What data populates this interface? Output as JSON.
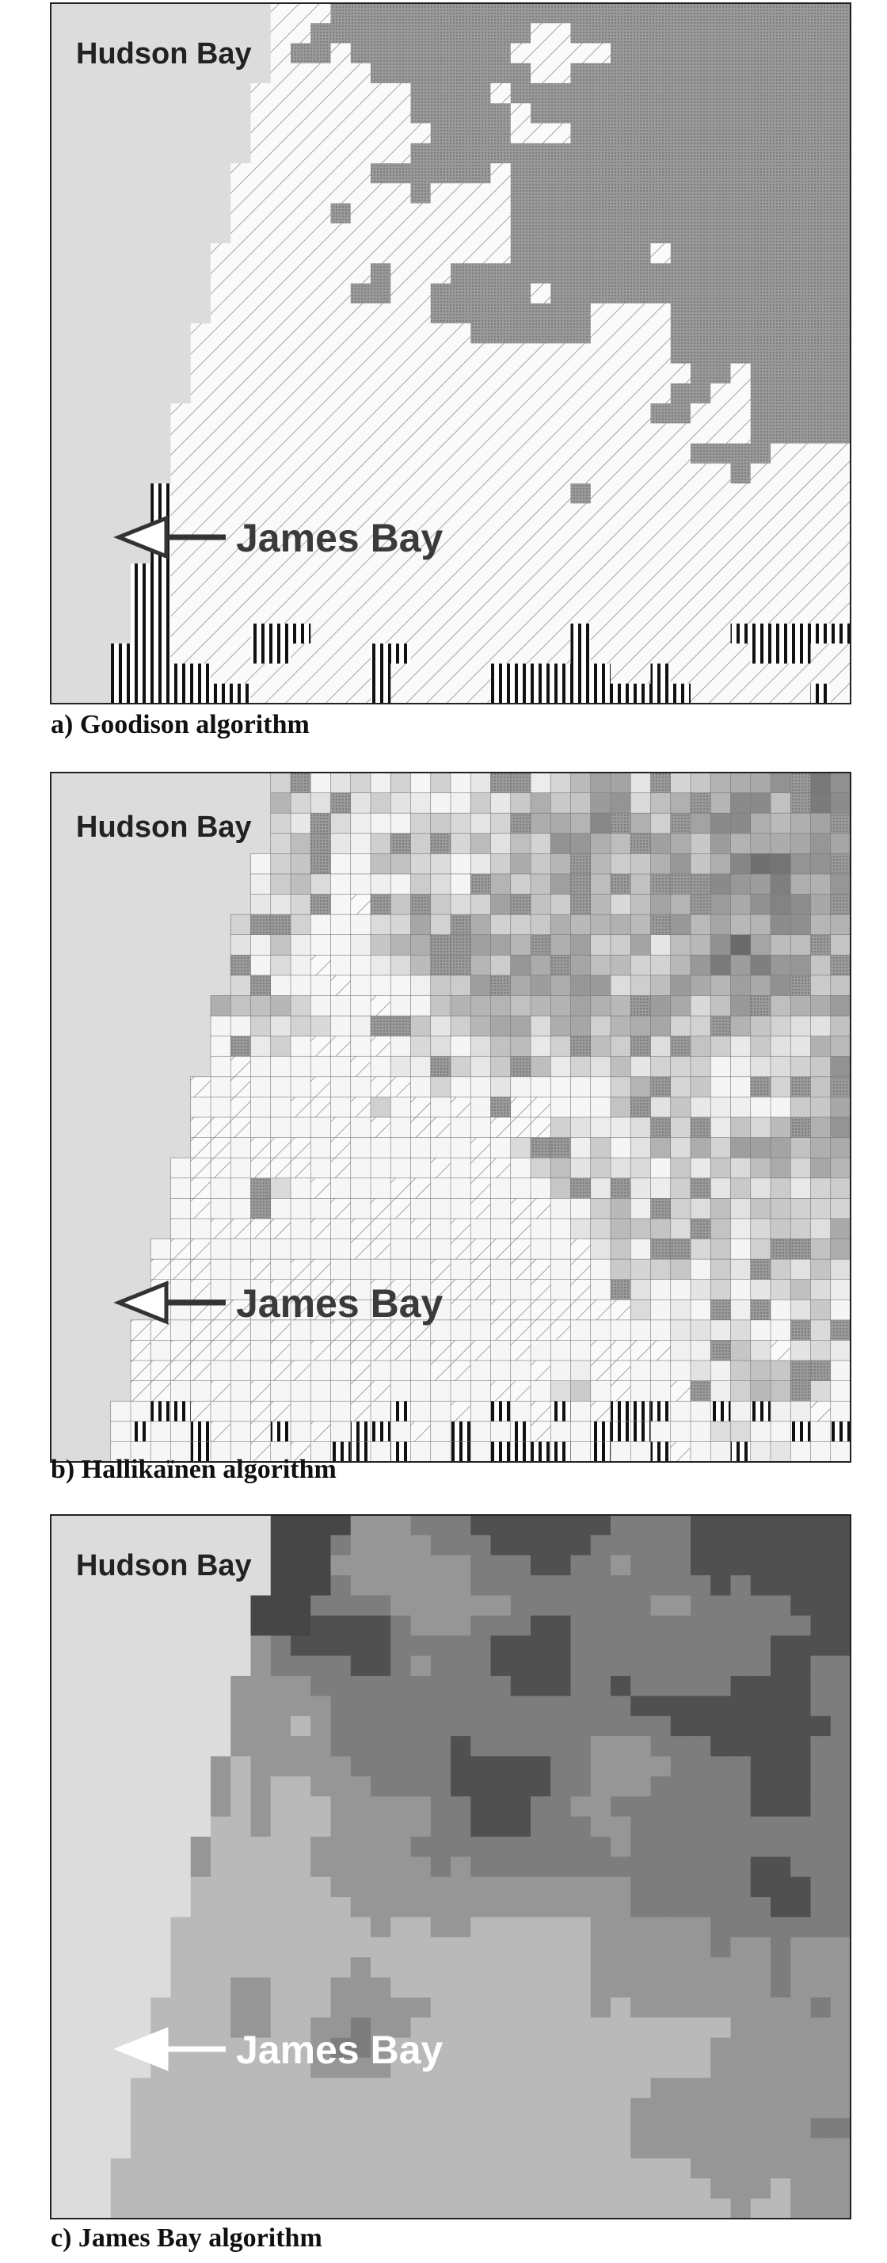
{
  "panels": [
    {
      "hudson_label": "Hudson Bay",
      "james_label": "James Bay",
      "caption": "a) Goodison algorithm"
    },
    {
      "hudson_label": "Hudson Bay",
      "james_label": "James Bay",
      "caption": "b) Hallikaïnen algorithm"
    },
    {
      "hudson_label": "Hudson Bay",
      "james_label": "James Bay",
      "caption": "c) James Bay algorithm"
    }
  ]
}
